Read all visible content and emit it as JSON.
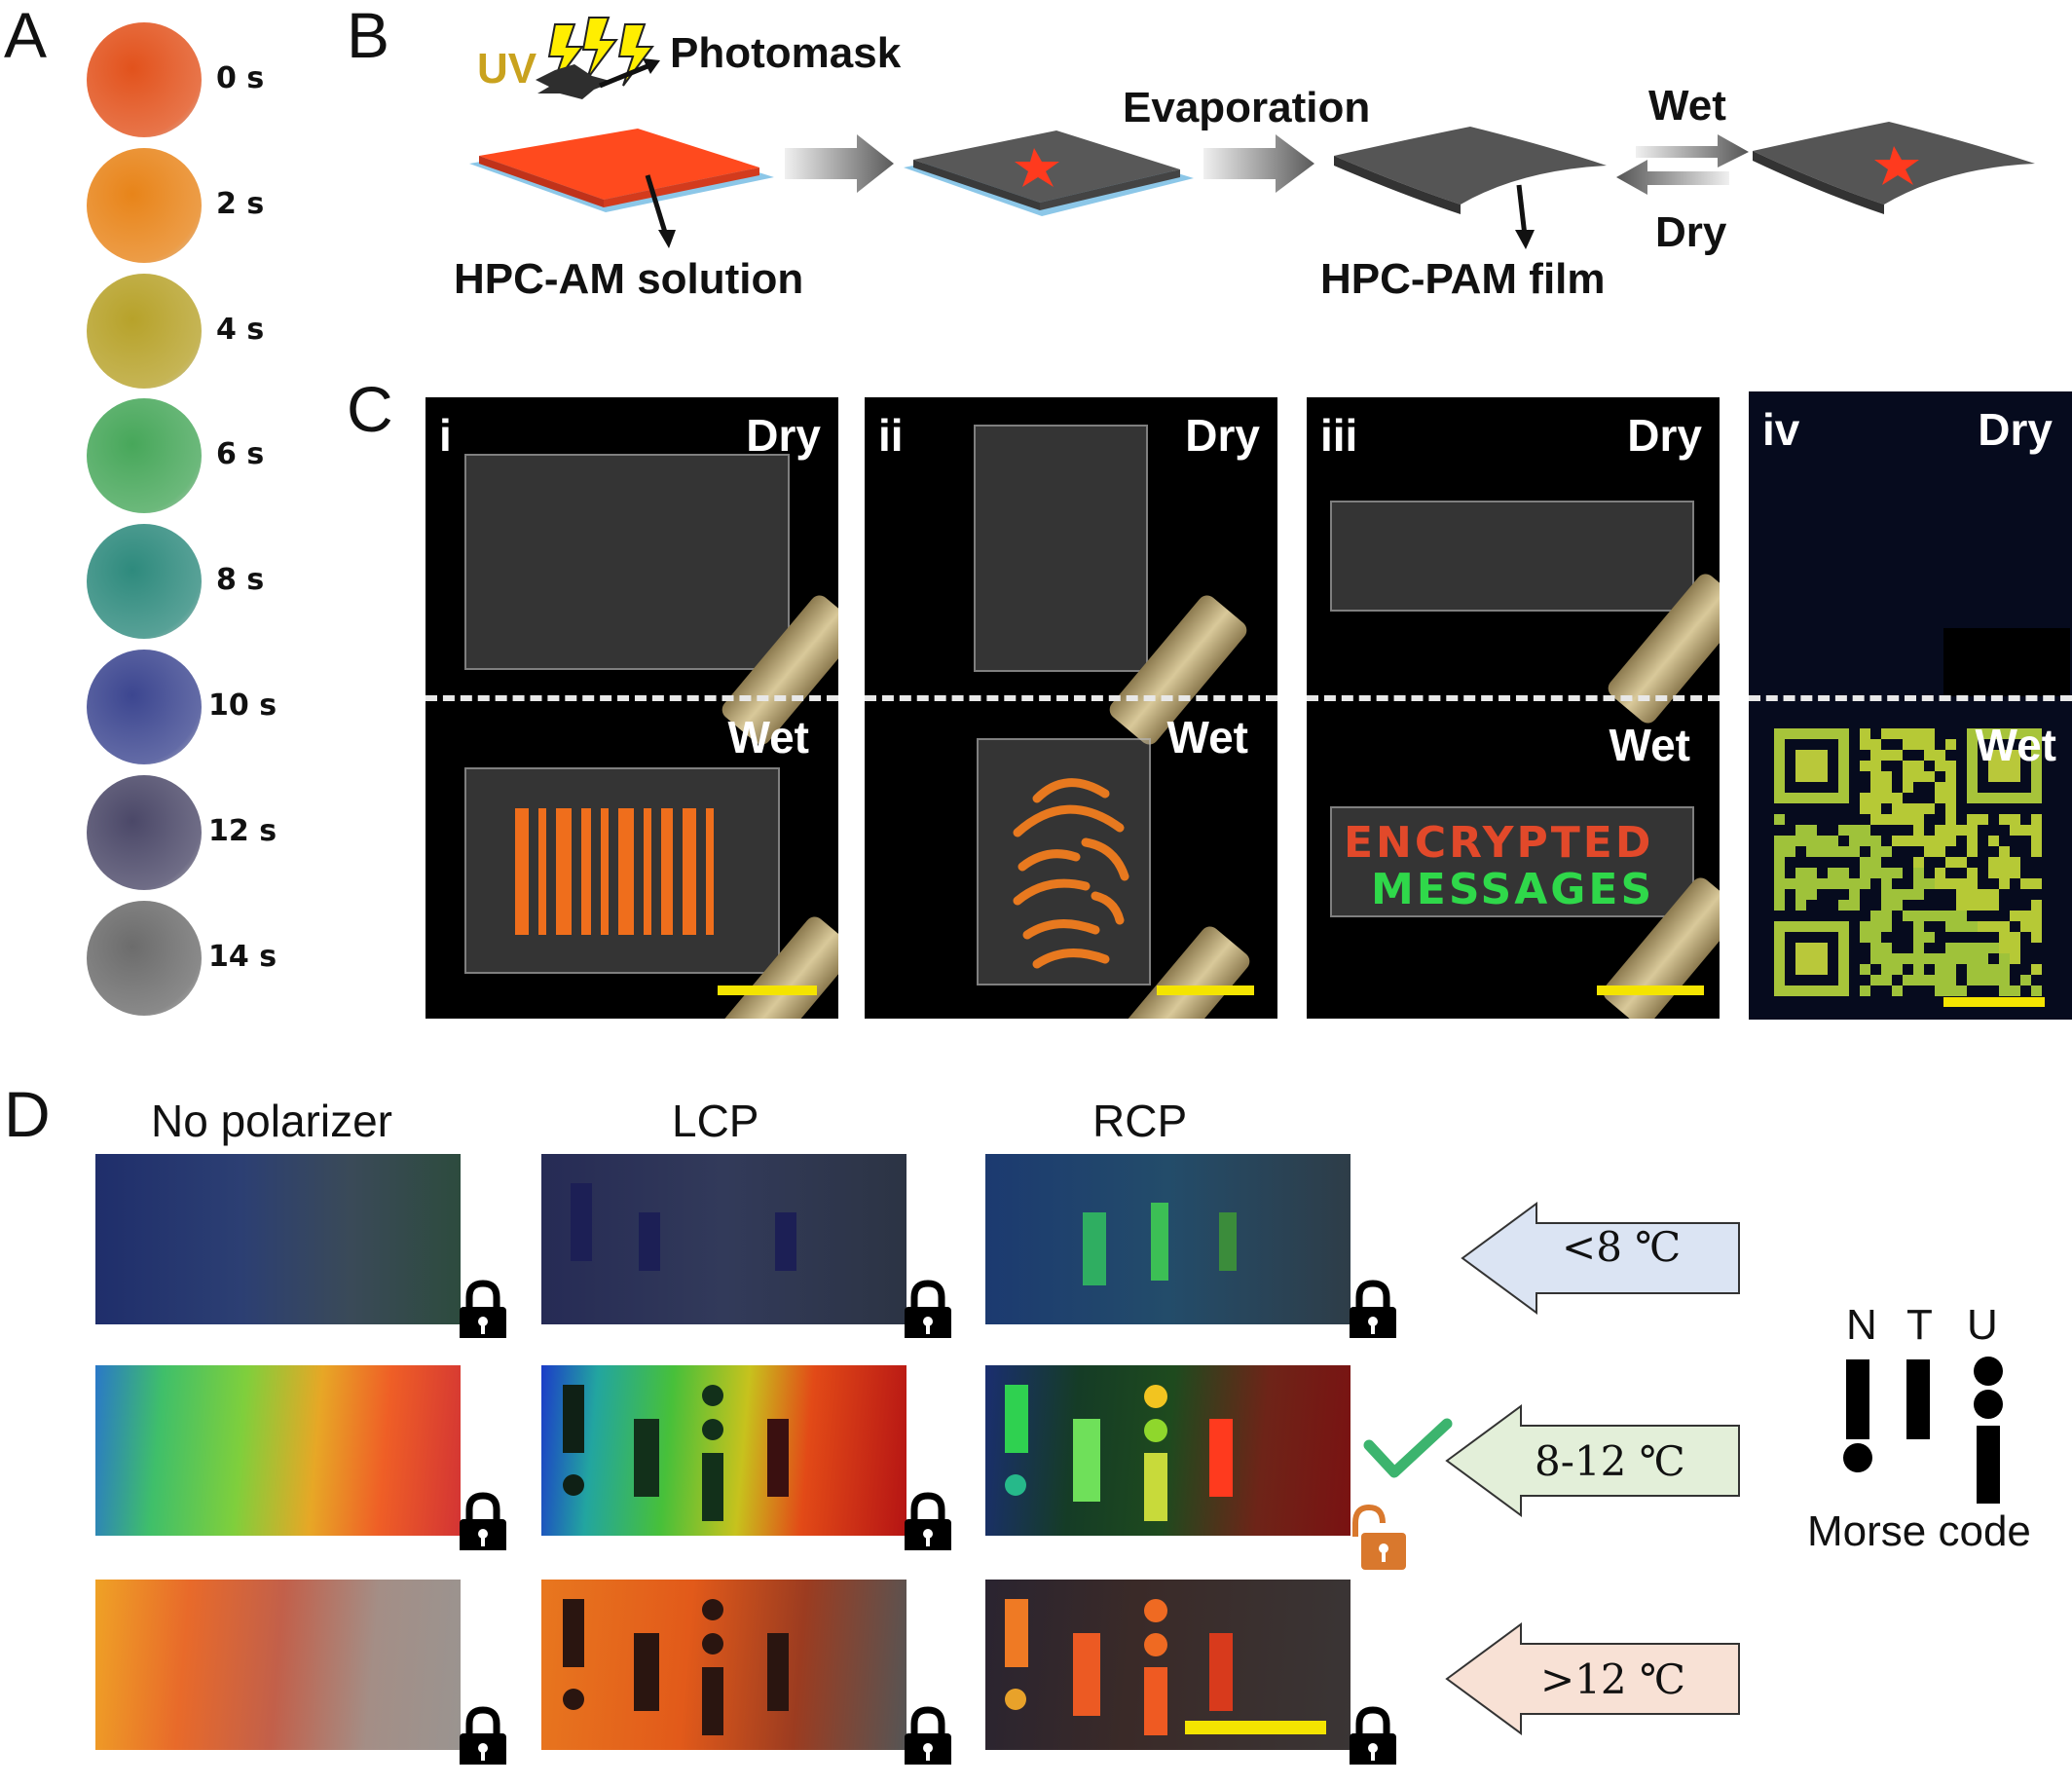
{
  "panels": {
    "a": "A",
    "b": "B",
    "c": "C",
    "d": "D"
  },
  "panel_a": {
    "times": [
      "0 s",
      "2 s",
      "4 s",
      "6 s",
      "8 s",
      "10 s",
      "12 s",
      "14 s"
    ],
    "colors": [
      "#e2521c",
      "#e88419",
      "#b7a22a",
      "#47a75a",
      "#2e8a7d",
      "#3c4690",
      "#4b4868",
      "#6c6c6c"
    ]
  },
  "panel_b": {
    "uv": "UV",
    "photomask": "Photomask",
    "evaporation": "Evaporation",
    "wet": "Wet",
    "dry": "Dry",
    "solution": "HPC-AM solution",
    "film": "HPC-PAM film"
  },
  "panel_c": {
    "numerals": [
      "i",
      "ii",
      "iii",
      "iv"
    ],
    "dry": "Dry",
    "wet": "Wet",
    "message_line1": "ENCRYPTED",
    "message_line2": "MESSAGES"
  },
  "panel_d": {
    "columns": [
      "No polarizer",
      "LCP",
      "RCP"
    ],
    "temps": [
      "<8 ℃",
      "8-12 ℃",
      ">12 ℃"
    ],
    "morse_letters": [
      "N",
      "T",
      "U"
    ],
    "morse_caption": "Morse code",
    "colors": {
      "cold": "#dbe4f3",
      "mid": "#e3efd9",
      "hot": "#f8e1d5",
      "check": "#3cb46e",
      "unlock": "#d9782d"
    }
  }
}
